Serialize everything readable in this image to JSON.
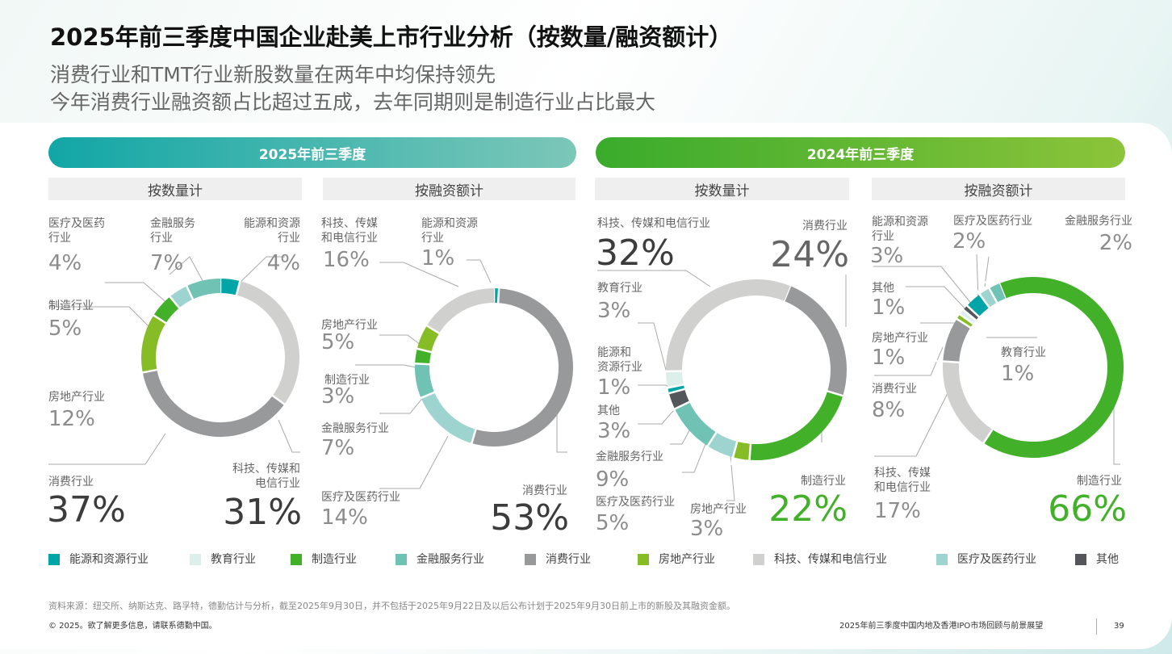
{
  "title": "2025年前三季度中国企业赴美上市行业分析（按数量/融资额计）",
  "subtitle1": "消费行业和TMT行业新股数量在两年中均保持领先",
  "subtitle2": "今年消费行业融资额占比超过五成，去年同期则是制造行业占比最大",
  "banners": [
    "2025年前三季度",
    "2024年前三季度"
  ],
  "chart_headers": [
    "按数量计",
    "按融资额计",
    "按数量计",
    "按融资额计"
  ],
  "colors": {
    "energy": "#00a5a8",
    "education": "#ddefea",
    "manufacturing": "#43b02a",
    "finance": "#6fc2b4",
    "consumer": "#97999b",
    "realestate": "#86bc25",
    "tmt": "#d0d0ce",
    "medical": "#9dd4cf",
    "other": "#53565a"
  },
  "chart_data": [
    {
      "type": "pie",
      "title": "2025年前三季度 按数量计",
      "slices": [
        {
          "key": "energy",
          "label": "能源和资源\n行业",
          "value": 4,
          "text": "4%"
        },
        {
          "key": "tmt",
          "label": "科技、传媒和\n电信行业",
          "value": 31,
          "text": "31%"
        },
        {
          "key": "consumer",
          "label": "消费行业",
          "value": 37,
          "text": "37%"
        },
        {
          "key": "realestate",
          "label": "房地产行业",
          "value": 12,
          "text": "12%"
        },
        {
          "key": "manufacturing",
          "label": "制造行业",
          "value": 5,
          "text": "5%"
        },
        {
          "key": "medical",
          "label": "医疗及医药\n行业",
          "value": 4,
          "text": "4%"
        },
        {
          "key": "finance",
          "label": "金融服务\n行业",
          "value": 7,
          "text": "7%"
        }
      ]
    },
    {
      "type": "pie",
      "title": "2025年前三季度 按融资额计",
      "slices": [
        {
          "key": "energy",
          "label": "能源和资源\n行业",
          "value": 1,
          "text": "1%"
        },
        {
          "key": "consumer",
          "label": "消费行业",
          "value": 53,
          "text": "53%"
        },
        {
          "key": "medical",
          "label": "医疗及医药行业",
          "value": 14,
          "text": "14%"
        },
        {
          "key": "finance",
          "label": "金融服务行业",
          "value": 7,
          "text": "7%"
        },
        {
          "key": "manufacturing",
          "label": "制造行业",
          "value": 3,
          "text": "3%"
        },
        {
          "key": "realestate",
          "label": "房地产行业",
          "value": 5,
          "text": "5%"
        },
        {
          "key": "tmt",
          "label": "科技、传媒\n和电信行业",
          "value": 16,
          "text": "16%"
        }
      ]
    },
    {
      "type": "pie",
      "title": "2024年前三季度 按数量计",
      "slices": [
        {
          "key": "consumer",
          "label": "消费行业",
          "value": 24,
          "text": "24%"
        },
        {
          "key": "manufacturing",
          "label": "制造行业",
          "value": 22,
          "text": "22%"
        },
        {
          "key": "realestate",
          "label": "房地产行业",
          "value": 3,
          "text": "3%"
        },
        {
          "key": "medical",
          "label": "医疗及医药行业",
          "value": 5,
          "text": "5%"
        },
        {
          "key": "finance",
          "label": "金融服务行业",
          "value": 9,
          "text": "9%"
        },
        {
          "key": "other",
          "label": "其他",
          "value": 3,
          "text": "3%"
        },
        {
          "key": "energy",
          "label": "能源和\n资源行业",
          "value": 1,
          "text": "1%"
        },
        {
          "key": "education",
          "label": "教育行业",
          "value": 3,
          "text": "3%"
        },
        {
          "key": "tmt",
          "label": "科技、传媒和电信行业",
          "value": 32,
          "text": "32%"
        }
      ]
    },
    {
      "type": "pie",
      "title": "2024年前三季度 按融资额计",
      "slices": [
        {
          "key": "manufacturing",
          "label": "制造行业",
          "value": 66,
          "text": "66%"
        },
        {
          "key": "tmt",
          "label": "科技、传媒\n和电信行业",
          "value": 17,
          "text": "17%"
        },
        {
          "key": "consumer",
          "label": "消费行业",
          "value": 8,
          "text": "8%"
        },
        {
          "key": "realestate",
          "label": "房地产行业",
          "value": 1,
          "text": "1%"
        },
        {
          "key": "education",
          "label": "教育行业",
          "value": 1,
          "text": "1%"
        },
        {
          "key": "other",
          "label": "其他",
          "value": 1,
          "text": "1%"
        },
        {
          "key": "energy",
          "label": "能源和资源\n行业",
          "value": 3,
          "text": "3%"
        },
        {
          "key": "medical",
          "label": "医疗及医药行业",
          "value": 2,
          "text": "2%"
        },
        {
          "key": "finance",
          "label": "金融服务行业",
          "value": 2,
          "text": "2%"
        }
      ]
    }
  ],
  "legend": [
    {
      "key": "energy",
      "label": "能源和资源行业"
    },
    {
      "key": "education",
      "label": "教育行业"
    },
    {
      "key": "manufacturing",
      "label": "制造行业"
    },
    {
      "key": "finance",
      "label": "金融服务行业"
    },
    {
      "key": "consumer",
      "label": "消费行业"
    },
    {
      "key": "realestate",
      "label": "房地产行业"
    },
    {
      "key": "tmt",
      "label": "科技、传媒和电信行业"
    },
    {
      "key": "medical",
      "label": "医疗及医药行业"
    },
    {
      "key": "other",
      "label": "其他"
    }
  ],
  "source": "资料来源：纽交所、纳斯达克、路孚特，德勤估计与分析，截至2025年9月30日，并不包括于2025年9月22日及以后公布计划于2025年9月30日前上市的新股及其融资金额。",
  "footer": {
    "copyright": "© 2025。欲了解更多信息，请联系德勤中国。",
    "report": "2025年前三季度中国内地及香港IPO市场回顾与前景展望",
    "page": "39"
  }
}
